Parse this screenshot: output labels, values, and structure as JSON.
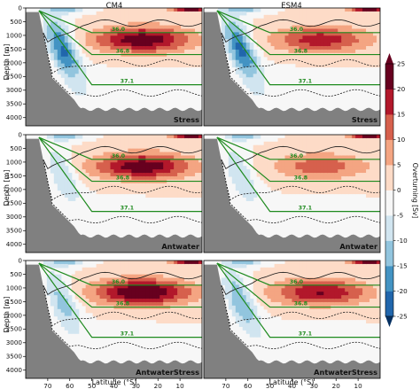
{
  "chart_data": {
    "type": "heatmap",
    "description_kind": "overturning streamfunction sections, 3 rows x 2 columns",
    "columns": [
      "CM4",
      "ESM4"
    ],
    "rows": [
      "Stress",
      "Antwater",
      "AntwaterStress"
    ],
    "panels": [
      {
        "model": "CM4",
        "experiment": "Stress",
        "strength": 1.0,
        "south_cell": -1.0,
        "isopycnals": [
          "36.0",
          "36.8",
          "37.1"
        ]
      },
      {
        "model": "ESM4",
        "experiment": "Stress",
        "strength": 0.75,
        "south_cell": -1.0,
        "isopycnals": [
          "36.0",
          "36.8",
          "37.1"
        ]
      },
      {
        "model": "CM4",
        "experiment": "Antwater",
        "strength": 1.0,
        "south_cell": -0.45,
        "isopycnals": [
          "36.0",
          "36.8",
          "37.1"
        ]
      },
      {
        "model": "ESM4",
        "experiment": "Antwater",
        "strength": 0.55,
        "south_cell": -0.45,
        "isopycnals": [
          "36.0",
          "36.8",
          "37.1"
        ]
      },
      {
        "model": "CM4",
        "experiment": "AntwaterStress",
        "strength": 1.1,
        "south_cell": -0.6,
        "isopycnals": [
          "36.0",
          "36.8",
          "37.1"
        ]
      },
      {
        "model": "ESM4",
        "experiment": "AntwaterStress",
        "strength": 0.85,
        "south_cell": -0.7,
        "isopycnals": [
          "36.0",
          "36.8",
          "37.1"
        ]
      }
    ],
    "x": {
      "label": "Latitude (°S)",
      "range": [
        80,
        0
      ],
      "ticks": [
        "70",
        "60",
        "50",
        "40",
        "30",
        "20",
        "10"
      ],
      "tick_values": [
        70,
        60,
        50,
        40,
        30,
        20,
        10
      ]
    },
    "y": {
      "label": "Depth [m]",
      "range": [
        0,
        4300
      ],
      "ticks": [
        "0",
        "500",
        "1000",
        "1500",
        "2000",
        "2500",
        "3000",
        "3500",
        "4000"
      ],
      "tick_values": [
        0,
        500,
        1000,
        1500,
        2000,
        2500,
        3000,
        3500,
        4000
      ]
    },
    "colorbar": {
      "label": "Overturning [Sv]",
      "levels": [
        -25,
        -20,
        -15,
        -10,
        -5,
        0,
        5,
        10,
        15,
        20,
        25
      ],
      "tick_labels": [
        "-25",
        "-20",
        "-15",
        "-10",
        "-5",
        "0",
        "5",
        "10",
        "15",
        "20",
        "25"
      ],
      "extend": "both",
      "cmap": "RdBu_r",
      "colors": [
        "#053061",
        "#2166ac",
        "#4393c3",
        "#92c5de",
        "#d1e5f0",
        "#f7f7f7",
        "#fddbc7",
        "#f4a582",
        "#d6604d",
        "#b2182b",
        "#67001f"
      ]
    },
    "grid": false
  }
}
